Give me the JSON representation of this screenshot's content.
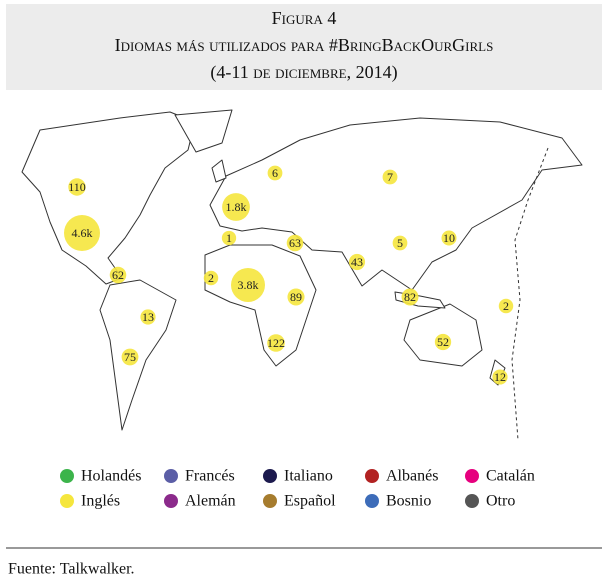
{
  "header": {
    "figure": "Figura 4",
    "title": "Idiomas más utilizados para #BringBackOurGirls",
    "subtitle": "(4-11 de diciembre, 2014)"
  },
  "bubbles": {
    "values": [
      110,
      4600,
      62,
      13,
      75,
      1800,
      1,
      2,
      3800,
      6,
      63,
      89,
      122,
      7,
      43,
      5,
      10,
      82,
      2,
      52,
      12
    ],
    "value_labels": [
      "110",
      "4.6k",
      "62",
      "13",
      "75",
      "1.8k",
      "1",
      "2",
      "3.8k",
      "6",
      "63",
      "89",
      "122",
      "7",
      "43",
      "5",
      "10",
      "82",
      "2",
      "52",
      "12"
    ]
  },
  "legend": [
    {
      "name": "Holandés",
      "color": "#3cb44b"
    },
    {
      "name": "Inglés",
      "color": "#f5e63d"
    },
    {
      "name": "Francés",
      "color": "#5b5ea6"
    },
    {
      "name": "Alemán",
      "color": "#8b2a8b"
    },
    {
      "name": "Italiano",
      "color": "#1c1a4e"
    },
    {
      "name": "Español",
      "color": "#a67c2e"
    },
    {
      "name": "Albanés",
      "color": "#b22222"
    },
    {
      "name": "Bosnio",
      "color": "#3d6cb9"
    },
    {
      "name": "Catalán",
      "color": "#e6007e"
    },
    {
      "name": "Otro",
      "color": "#555555"
    }
  ],
  "source": "Fuente: Talkwalker."
}
